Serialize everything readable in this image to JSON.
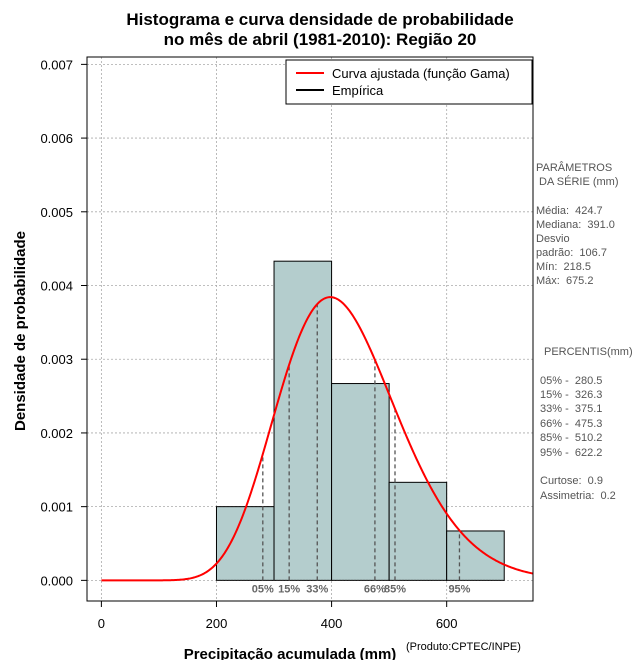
{
  "chart_data": {
    "type": "bar",
    "title_line1": "Histograma e curva densidade de probabilidade",
    "title_line2": "no mês de abril (1981-2010): Região 20",
    "xlabel": "Precipitação acumulada (mm)",
    "ylabel": "Densidade de probabilidade",
    "credit": "(Produto:CPTEC/INPE)",
    "xlim": [
      -25,
      750
    ],
    "ylim": [
      -0.00028,
      0.0071
    ],
    "xticks": [
      0,
      200,
      400,
      600
    ],
    "yticks": [
      0,
      0.001,
      0.002,
      0.003,
      0.004,
      0.005,
      0.006,
      0.007
    ],
    "ytick_labels": [
      "0.000",
      "0.001",
      "0.002",
      "0.003",
      "0.004",
      "0.005",
      "0.006",
      "0.007"
    ],
    "grid": true,
    "bins": [
      {
        "start": 200,
        "end": 300,
        "density": 0.001
      },
      {
        "start": 300,
        "end": 400,
        "density": 0.00433
      },
      {
        "start": 400,
        "end": 500,
        "density": 0.00267
      },
      {
        "start": 500,
        "end": 600,
        "density": 0.00133
      },
      {
        "start": 600,
        "end": 700,
        "density": 0.00067
      }
    ],
    "gamma_fit": {
      "shape": 15.84,
      "scale": 26.8,
      "x_max": 750
    },
    "percentile_markers": [
      {
        "label": "05%",
        "x": 280.5
      },
      {
        "label": "15%",
        "x": 326.3
      },
      {
        "label": "33%",
        "x": 375.1
      },
      {
        "label": "66%",
        "x": 475.3
      },
      {
        "label": "85%",
        "x": 510.2
      },
      {
        "label": "95%",
        "x": 622.2
      }
    ],
    "legend": {
      "placement": "top-right",
      "entries": [
        {
          "label": "Curva ajustada (função Gama)",
          "color": "#ff0000"
        },
        {
          "label": "Empírica",
          "color": "#000000"
        }
      ]
    },
    "colors": {
      "bar_fill": "#b4cdcd",
      "curve": "#ff0000",
      "grid": "#aaaaaa",
      "marker": "#555555"
    }
  },
  "side_panel": {
    "params_title_1": "PARÂMETROS",
    "params_title_2": " DA SÉRIE (mm)",
    "media": "Média:  424.7",
    "mediana": "Mediana:  391.0",
    "desvio_1": "Desvio",
    "desvio_2": "padrão:  106.7",
    "min": "Mín:  218.5",
    "max": "Máx:  675.2",
    "percentis_title": "PERCENTIS(mm)",
    "p05": "05% -  280.5",
    "p15": "15% -  326.3",
    "p33": "33% -  375.1",
    "p66": "66% -  475.3",
    "p85": "85% -  510.2",
    "p95": "95% -  622.2",
    "curtose": "Curtose:  0.9",
    "assimetria": "Assimetria:  0.2"
  }
}
